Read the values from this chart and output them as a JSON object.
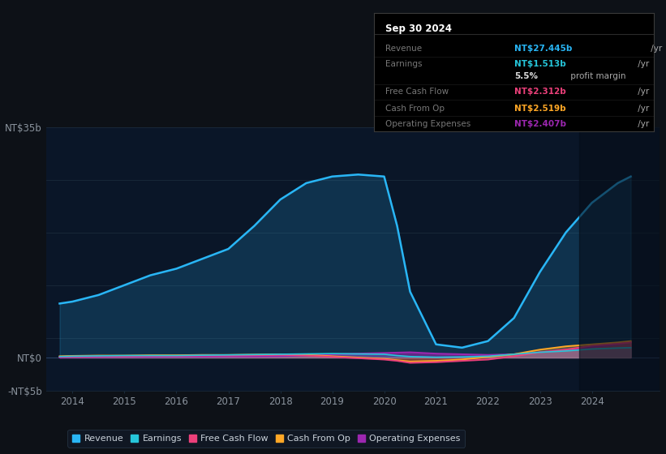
{
  "bg_color": "#0d1117",
  "plot_bg_color": "#0a1628",
  "grid_color": "#1a2a3a",
  "axis_label_color": "#8b949e",
  "years": [
    2013.75,
    2014,
    2014.5,
    2015,
    2015.5,
    2016,
    2016.5,
    2017,
    2017.5,
    2018,
    2018.5,
    2019,
    2019.5,
    2020,
    2020.25,
    2020.5,
    2021,
    2021.5,
    2022,
    2022.5,
    2023,
    2023.5,
    2024,
    2024.5,
    2024.75
  ],
  "revenue": [
    8.2,
    8.5,
    9.5,
    11.0,
    12.5,
    13.5,
    15.0,
    16.5,
    20.0,
    24.0,
    26.5,
    27.5,
    27.8,
    27.5,
    20.0,
    10.0,
    2.0,
    1.5,
    2.5,
    6.0,
    13.0,
    19.0,
    23.5,
    26.5,
    27.5
  ],
  "earnings": [
    0.15,
    0.2,
    0.25,
    0.3,
    0.3,
    0.3,
    0.35,
    0.4,
    0.45,
    0.5,
    0.55,
    0.6,
    0.55,
    0.5,
    0.3,
    0.15,
    0.05,
    0.1,
    0.2,
    0.5,
    0.8,
    1.0,
    1.3,
    1.45,
    1.5
  ],
  "free_cash": [
    0.1,
    0.15,
    0.2,
    0.2,
    0.25,
    0.25,
    0.3,
    0.3,
    0.35,
    0.4,
    0.3,
    0.1,
    -0.1,
    -0.3,
    -0.5,
    -0.8,
    -0.7,
    -0.5,
    -0.3,
    0.2,
    0.8,
    1.2,
    1.8,
    2.1,
    2.3
  ],
  "cash_op": [
    0.2,
    0.25,
    0.3,
    0.3,
    0.35,
    0.35,
    0.4,
    0.4,
    0.45,
    0.5,
    0.4,
    0.2,
    0.0,
    -0.2,
    -0.4,
    -0.6,
    -0.5,
    -0.3,
    0.1,
    0.5,
    1.2,
    1.7,
    2.0,
    2.3,
    2.5
  ],
  "op_expenses": [
    0.0,
    0.05,
    0.08,
    0.1,
    0.1,
    0.12,
    0.12,
    0.15,
    0.15,
    0.2,
    0.3,
    0.5,
    0.6,
    0.7,
    0.75,
    0.8,
    0.6,
    0.5,
    0.4,
    0.5,
    0.8,
    1.2,
    1.6,
    2.0,
    2.4
  ],
  "revenue_color": "#29b6f6",
  "earnings_color": "#26c6da",
  "free_cash_color": "#ec407a",
  "cash_op_color": "#ffa726",
  "op_expenses_color": "#9c27b0",
  "ylim_min": -5,
  "ylim_max": 35,
  "ytick_positions": [
    -5,
    0,
    35
  ],
  "ytick_labels": [
    "-NT$5b",
    "NT$0",
    "NT$35b"
  ],
  "xlim_min": 2013.5,
  "xlim_max": 2025.3,
  "xticks": [
    2014,
    2015,
    2016,
    2017,
    2018,
    2019,
    2020,
    2021,
    2022,
    2023,
    2024
  ],
  "tooltip_date": "Sep 30 2024",
  "tooltip_rows": [
    {
      "label": "Revenue",
      "value": "NT$27.445b",
      "unit": " /yr",
      "color": "#29b6f6"
    },
    {
      "label": "Earnings",
      "value": "NT$1.513b",
      "unit": " /yr",
      "color": "#26c6da"
    },
    {
      "label": "",
      "value": "5.5%",
      "unit": " profit margin",
      "color": "#e0e0e0"
    },
    {
      "label": "Free Cash Flow",
      "value": "NT$2.312b",
      "unit": " /yr",
      "color": "#ec407a"
    },
    {
      "label": "Cash From Op",
      "value": "NT$2.519b",
      "unit": " /yr",
      "color": "#ffa726"
    },
    {
      "label": "Operating Expenses",
      "value": "NT$2.407b",
      "unit": " /yr",
      "color": "#9c27b0"
    }
  ],
  "legend_items": [
    {
      "label": "Revenue",
      "color": "#29b6f6"
    },
    {
      "label": "Earnings",
      "color": "#26c6da"
    },
    {
      "label": "Free Cash Flow",
      "color": "#ec407a"
    },
    {
      "label": "Cash From Op",
      "color": "#ffa726"
    },
    {
      "label": "Operating Expenses",
      "color": "#9c27b0"
    }
  ],
  "dark_overlay_start": 2023.75,
  "dark_overlay_color": "#060d18"
}
